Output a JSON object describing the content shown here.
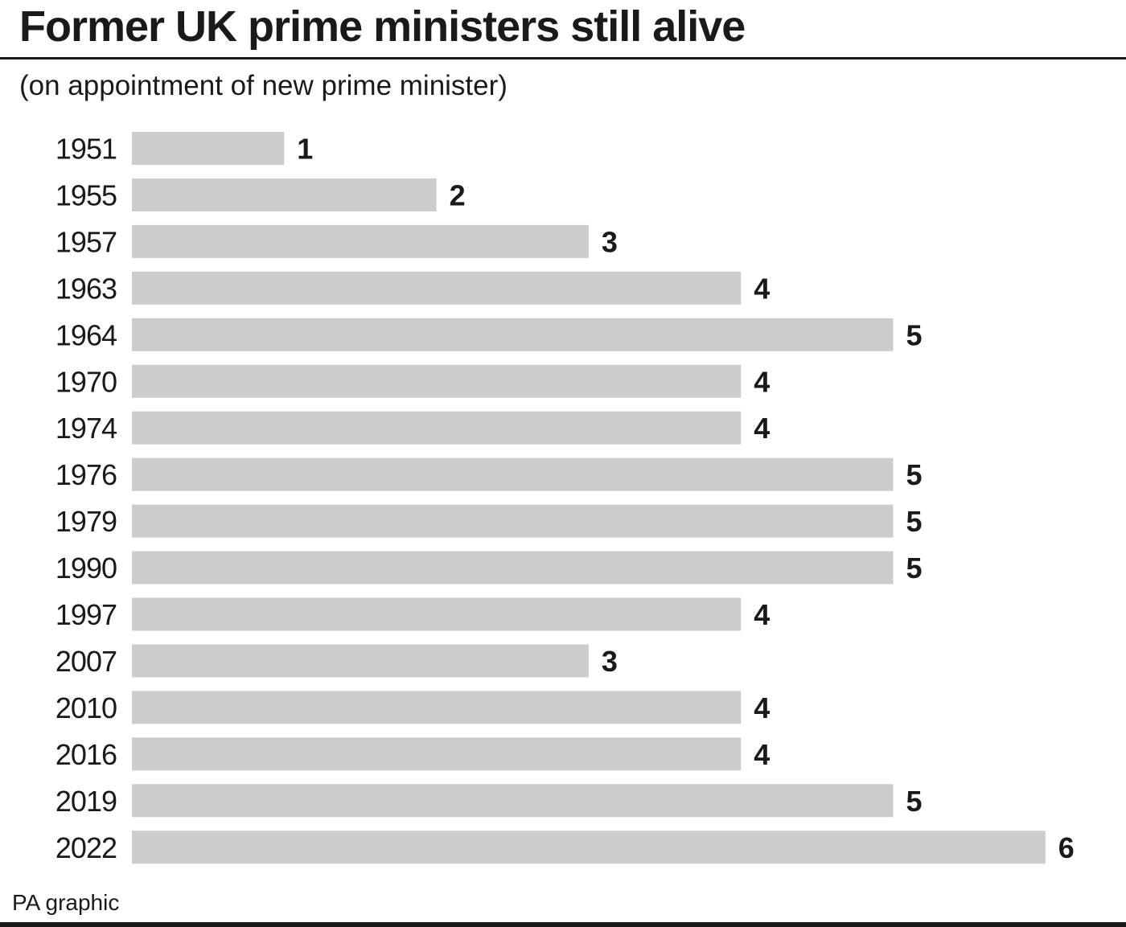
{
  "title": "Former UK prime ministers still alive",
  "subtitle": "(on appointment of new prime minister)",
  "source": "PA graphic",
  "colors": {
    "bar": "#cccccc",
    "text": "#1a1a1a",
    "rule": "#1a1a1a"
  },
  "chart_data": {
    "type": "bar",
    "orientation": "horizontal",
    "title": "Former UK prime ministers still alive",
    "subtitle": "(on appointment of new prime minister)",
    "categories": [
      "1951",
      "1955",
      "1957",
      "1963",
      "1964",
      "1970",
      "1974",
      "1976",
      "1979",
      "1990",
      "1997",
      "2007",
      "2010",
      "2016",
      "2019",
      "2022"
    ],
    "values": [
      1,
      2,
      3,
      4,
      5,
      4,
      4,
      5,
      5,
      5,
      4,
      3,
      4,
      4,
      5,
      6
    ],
    "xlim": [
      0,
      6
    ],
    "grid": false,
    "data_labels": true
  }
}
